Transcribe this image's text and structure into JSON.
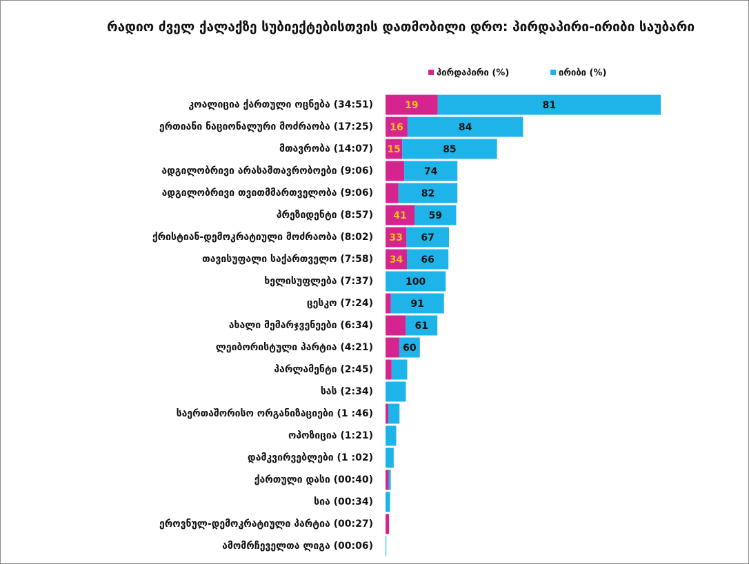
{
  "chart_data": {
    "type": "bar",
    "orientation": "horizontal",
    "stacked": true,
    "title": "რადიო ძველ ქალაქზე სუბიექტებისთვის დათმობილი დრო: პირდაპირი-ირიბი საუბარი",
    "categories": [
      "კოალიცია ქართული ოცნება (34:51)",
      "ერთიანი ნაციონალური მოძრაობა (17:25)",
      "მთავრობა (14:07)",
      "ადგილობრივი არასამთავრობოები (9:06)",
      "ადგილობრივი თვითმმართველობა (9:06)",
      "პრეზიდენტი (8:57)",
      "ქრისტიან-დემოკრატიული მოძრაობა (8:02)",
      "თავისუფალი საქართველო (7:58)",
      "ხელისუფლება (7:37)",
      "ცესკო (7:24)",
      "ახალი მემარჯვენეები (6:34)",
      "ლეიბორისტული პარტია (4:21)",
      "პარლამენტი (2:45)",
      "სას (2:34)",
      "საერთაშორისო ორგანიზაციები (1 :46)",
      "ოპოზიცია (1:21)",
      "დამკვირვებლები (1 :02)",
      "ქართული დასი (00:40)",
      "სია (00:34)",
      "ეროვნულ-დემოკრატიული პარტია (00:27)",
      "ამომრჩეველთა ლიგა (00:06)"
    ],
    "series": [
      {
        "name": "პირდაპირი (%)",
        "color": "#d6248f",
        "label_color": "#f7c417",
        "values": [
          19,
          16,
          15,
          26,
          18,
          41,
          33,
          34,
          0,
          9,
          39,
          40,
          28,
          0,
          20,
          0,
          0,
          60,
          0,
          100,
          0
        ],
        "value_labels": [
          "19",
          "16",
          "15",
          null,
          null,
          "41",
          "33",
          "34",
          null,
          null,
          null,
          null,
          null,
          null,
          null,
          null,
          null,
          null,
          null,
          null,
          null
        ]
      },
      {
        "name": "ირიბი (%)",
        "color": "#1eb4ea",
        "label_color": "#111111",
        "values": [
          81,
          84,
          85,
          74,
          82,
          59,
          67,
          66,
          100,
          91,
          61,
          60,
          72,
          100,
          80,
          100,
          100,
          40,
          100,
          0,
          100
        ],
        "value_labels": [
          "81",
          "84",
          "85",
          "74",
          "82",
          "59",
          "67",
          "66",
          "100",
          "91",
          "61",
          "60",
          null,
          null,
          null,
          null,
          null,
          null,
          null,
          null,
          null
        ]
      }
    ]
  }
}
